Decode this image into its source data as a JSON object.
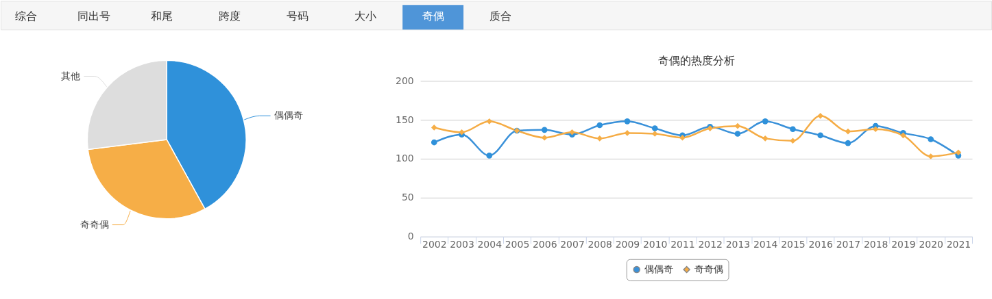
{
  "chart_data": [
    {
      "type": "other",
      "categories": [
        "综合",
        "同出号",
        "和尾",
        "跨度",
        "号码",
        "大小",
        "奇偶",
        "质合"
      ],
      "colors": [
        null,
        null,
        null,
        null,
        null,
        null,
        "#4f95d8",
        null
      ]
    },
    {
      "type": "pie",
      "categories": [
        "偶偶奇",
        "奇奇偶",
        "其他"
      ],
      "values": [
        42,
        31,
        27
      ],
      "colors": [
        "#2f91da",
        "#f6ae47",
        "#dddddd"
      ]
    },
    {
      "type": "line",
      "title": "奇偶的热度分析",
      "categories": [
        "2002",
        "2003",
        "2004",
        "2005",
        "2006",
        "2007",
        "2008",
        "2009",
        "2010",
        "2011",
        "2012",
        "2013",
        "2014",
        "2015",
        "2016",
        "2017",
        "2018",
        "2019",
        "2020",
        "2021"
      ],
      "ylim": [
        0,
        200
      ],
      "yticks": [
        0,
        50,
        100,
        150,
        200
      ],
      "grid": "y",
      "legend": "bottom",
      "line_style": "solid",
      "series": [
        {
          "name": "偶偶奇",
          "color": "#3a91d9",
          "marker": "circle",
          "values": [
            121,
            131,
            104,
            136,
            137,
            131,
            143,
            148,
            139,
            130,
            141,
            132,
            148,
            138,
            130,
            120,
            142,
            133,
            125,
            104
          ]
        },
        {
          "name": "奇奇偶",
          "color": "#f5ac45",
          "marker": "diamond",
          "values": [
            140,
            134,
            148,
            136,
            127,
            134,
            126,
            133,
            132,
            127,
            139,
            142,
            126,
            123,
            155,
            135,
            138,
            130,
            103,
            108
          ]
        }
      ]
    }
  ]
}
